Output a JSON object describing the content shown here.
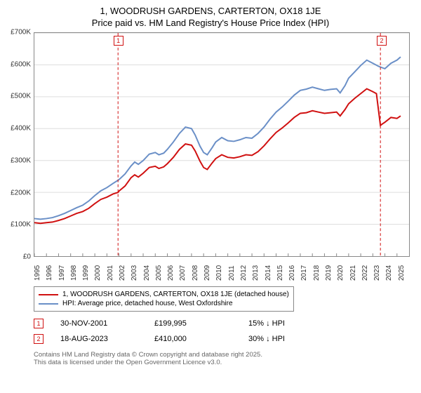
{
  "title": "1, WOODRUSH GARDENS, CARTERTON, OX18 1JE",
  "subtitle": "Price paid vs. HM Land Registry's House Price Index (HPI)",
  "chart": {
    "type": "line",
    "background_color": "#ffffff",
    "grid_color": "#dddddd",
    "axis_color": "#888888",
    "label_fontsize": 10,
    "title_fontsize": 13,
    "xlim": [
      1995,
      2026
    ],
    "ylim": [
      0,
      700000
    ],
    "ytick_step": 100000,
    "y_ticks": [
      "£0",
      "£100K",
      "£200K",
      "£300K",
      "£400K",
      "£500K",
      "£600K",
      "£700K"
    ],
    "x_ticks": [
      "1995",
      "1996",
      "1997",
      "1998",
      "1999",
      "2000",
      "2001",
      "2002",
      "2003",
      "2004",
      "2005",
      "2006",
      "2007",
      "2008",
      "2009",
      "2010",
      "2011",
      "2012",
      "2013",
      "2014",
      "2015",
      "2016",
      "2017",
      "2018",
      "2019",
      "2020",
      "2021",
      "2022",
      "2023",
      "2024",
      "2025"
    ],
    "series": [
      {
        "name": "pricepaid",
        "label": "1, WOODRUSH GARDENS, CARTERTON, OX18 1JE (detached house)",
        "color": "#d01010",
        "line_width": 2,
        "data": [
          [
            1995,
            105000
          ],
          [
            1995.5,
            103000
          ],
          [
            1996,
            105000
          ],
          [
            1996.5,
            107000
          ],
          [
            1997,
            112000
          ],
          [
            1997.5,
            118000
          ],
          [
            1998,
            126000
          ],
          [
            1998.5,
            134000
          ],
          [
            1999,
            140000
          ],
          [
            1999.5,
            150000
          ],
          [
            2000,
            165000
          ],
          [
            2000.5,
            178000
          ],
          [
            2001,
            185000
          ],
          [
            2001.5,
            195000
          ],
          [
            2001.92,
            199995
          ],
          [
            2002,
            204000
          ],
          [
            2002.5,
            220000
          ],
          [
            2003,
            246000
          ],
          [
            2003.3,
            255000
          ],
          [
            2003.6,
            248000
          ],
          [
            2004,
            260000
          ],
          [
            2004.5,
            278000
          ],
          [
            2005,
            282000
          ],
          [
            2005.3,
            275000
          ],
          [
            2005.7,
            280000
          ],
          [
            2006,
            290000
          ],
          [
            2006.5,
            310000
          ],
          [
            2007,
            335000
          ],
          [
            2007.5,
            352000
          ],
          [
            2008,
            348000
          ],
          [
            2008.3,
            330000
          ],
          [
            2008.7,
            298000
          ],
          [
            2009,
            278000
          ],
          [
            2009.3,
            272000
          ],
          [
            2009.7,
            292000
          ],
          [
            2010,
            306000
          ],
          [
            2010.5,
            318000
          ],
          [
            2011,
            310000
          ],
          [
            2011.5,
            308000
          ],
          [
            2012,
            312000
          ],
          [
            2012.5,
            318000
          ],
          [
            2013,
            316000
          ],
          [
            2013.5,
            328000
          ],
          [
            2014,
            346000
          ],
          [
            2014.5,
            368000
          ],
          [
            2015,
            388000
          ],
          [
            2015.5,
            402000
          ],
          [
            2016,
            418000
          ],
          [
            2016.5,
            435000
          ],
          [
            2017,
            448000
          ],
          [
            2017.5,
            450000
          ],
          [
            2018,
            456000
          ],
          [
            2018.5,
            452000
          ],
          [
            2019,
            448000
          ],
          [
            2019.5,
            450000
          ],
          [
            2020,
            452000
          ],
          [
            2020.3,
            440000
          ],
          [
            2020.7,
            460000
          ],
          [
            2021,
            478000
          ],
          [
            2021.5,
            495000
          ],
          [
            2022,
            510000
          ],
          [
            2022.5,
            525000
          ],
          [
            2023,
            516000
          ],
          [
            2023.3,
            510000
          ],
          [
            2023.63,
            410000
          ],
          [
            2023.8,
            415000
          ],
          [
            2024,
            420000
          ],
          [
            2024.5,
            435000
          ],
          [
            2025,
            432000
          ],
          [
            2025.3,
            440000
          ]
        ]
      },
      {
        "name": "hpi",
        "label": "HPI: Average price, detached house, West Oxfordshire",
        "color": "#6a8fc7",
        "line_width": 2,
        "data": [
          [
            1995,
            118000
          ],
          [
            1995.5,
            116000
          ],
          [
            1996,
            118000
          ],
          [
            1996.5,
            121000
          ],
          [
            1997,
            127000
          ],
          [
            1997.5,
            134000
          ],
          [
            1998,
            143000
          ],
          [
            1998.5,
            152000
          ],
          [
            1999,
            160000
          ],
          [
            1999.5,
            173000
          ],
          [
            2000,
            190000
          ],
          [
            2000.5,
            205000
          ],
          [
            2001,
            215000
          ],
          [
            2001.5,
            228000
          ],
          [
            2002,
            240000
          ],
          [
            2002.5,
            258000
          ],
          [
            2003,
            283000
          ],
          [
            2003.3,
            295000
          ],
          [
            2003.6,
            288000
          ],
          [
            2004,
            300000
          ],
          [
            2004.5,
            320000
          ],
          [
            2005,
            325000
          ],
          [
            2005.3,
            318000
          ],
          [
            2005.7,
            323000
          ],
          [
            2006,
            335000
          ],
          [
            2006.5,
            358000
          ],
          [
            2007,
            385000
          ],
          [
            2007.5,
            405000
          ],
          [
            2008,
            400000
          ],
          [
            2008.3,
            380000
          ],
          [
            2008.7,
            345000
          ],
          [
            2009,
            325000
          ],
          [
            2009.3,
            318000
          ],
          [
            2009.7,
            340000
          ],
          [
            2010,
            358000
          ],
          [
            2010.5,
            372000
          ],
          [
            2011,
            362000
          ],
          [
            2011.5,
            360000
          ],
          [
            2012,
            365000
          ],
          [
            2012.5,
            372000
          ],
          [
            2013,
            370000
          ],
          [
            2013.5,
            385000
          ],
          [
            2014,
            405000
          ],
          [
            2014.5,
            430000
          ],
          [
            2015,
            452000
          ],
          [
            2015.5,
            468000
          ],
          [
            2016,
            486000
          ],
          [
            2016.5,
            505000
          ],
          [
            2017,
            520000
          ],
          [
            2017.5,
            524000
          ],
          [
            2018,
            530000
          ],
          [
            2018.5,
            525000
          ],
          [
            2019,
            520000
          ],
          [
            2019.5,
            523000
          ],
          [
            2020,
            525000
          ],
          [
            2020.3,
            512000
          ],
          [
            2020.7,
            535000
          ],
          [
            2021,
            558000
          ],
          [
            2021.5,
            578000
          ],
          [
            2022,
            598000
          ],
          [
            2022.5,
            615000
          ],
          [
            2023,
            605000
          ],
          [
            2023.5,
            595000
          ],
          [
            2024,
            588000
          ],
          [
            2024.5,
            605000
          ],
          [
            2025,
            615000
          ],
          [
            2025.3,
            625000
          ]
        ]
      }
    ],
    "markers": [
      {
        "id": "1",
        "x": 2001.92,
        "color": "#d01010",
        "dash": "4,3"
      },
      {
        "id": "2",
        "x": 2023.63,
        "color": "#d01010",
        "dash": "4,3"
      }
    ]
  },
  "legend": {
    "items": [
      {
        "color": "#d01010",
        "label": "1, WOODRUSH GARDENS, CARTERTON, OX18 1JE (detached house)"
      },
      {
        "color": "#6a8fc7",
        "label": "HPI: Average price, detached house, West Oxfordshire"
      }
    ]
  },
  "footnotes": [
    {
      "marker": "1",
      "marker_color": "#d01010",
      "date": "30-NOV-2001",
      "price": "£199,995",
      "vs_hpi": "15% ↓ HPI"
    },
    {
      "marker": "2",
      "marker_color": "#d01010",
      "date": "18-AUG-2023",
      "price": "£410,000",
      "vs_hpi": "30% ↓ HPI"
    }
  ],
  "attribution": {
    "line1": "Contains HM Land Registry data © Crown copyright and database right 2025.",
    "line2": "This data is licensed under the Open Government Licence v3.0."
  }
}
